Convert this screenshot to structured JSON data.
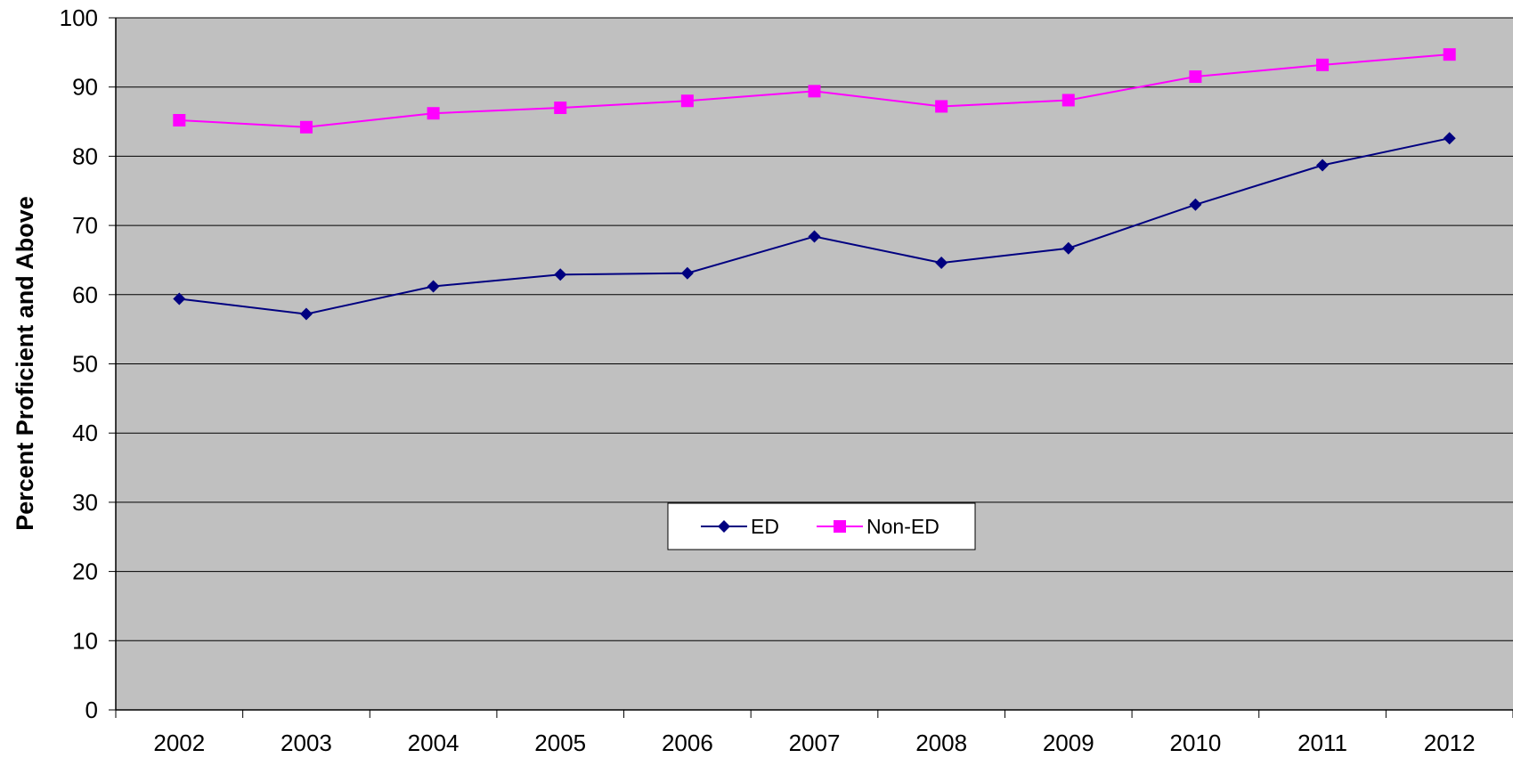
{
  "chart_data": {
    "type": "line",
    "title": "",
    "xlabel": "",
    "ylabel": "Percent Proficient and Above",
    "categories": [
      "2002",
      "2003",
      "2004",
      "2005",
      "2006",
      "2007",
      "2008",
      "2009",
      "2010",
      "2011",
      "2012"
    ],
    "ylim": [
      0,
      100
    ],
    "yticks": [
      0,
      10,
      20,
      30,
      40,
      50,
      60,
      70,
      80,
      90,
      100
    ],
    "grid": true,
    "plot_background": "#c0c0c0",
    "legend_position": "center",
    "series": [
      {
        "name": "ED",
        "color": "#000080",
        "marker": "diamond",
        "values": [
          59.4,
          57.2,
          61.2,
          62.9,
          63.1,
          68.4,
          64.6,
          66.7,
          73.0,
          78.7,
          82.6
        ]
      },
      {
        "name": "Non-ED",
        "color": "#ff00ff",
        "marker": "square",
        "values": [
          85.2,
          84.2,
          86.2,
          87.0,
          88.0,
          89.4,
          87.2,
          88.1,
          91.5,
          93.2,
          94.7
        ]
      }
    ]
  }
}
